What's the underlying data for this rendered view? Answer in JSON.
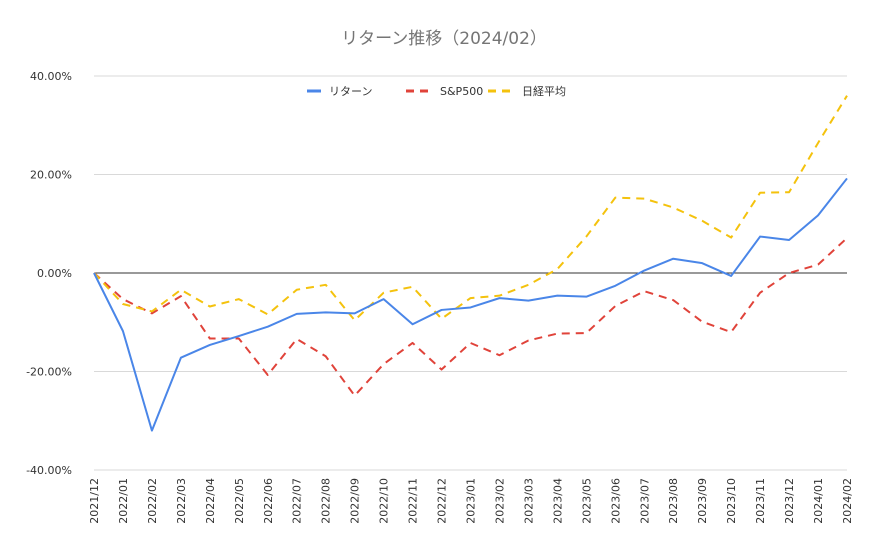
{
  "chart_data": {
    "type": "line",
    "title": "リターン推移（2024/02）",
    "xlabel": "",
    "ylabel": "",
    "ylim": [
      -40,
      40
    ],
    "yticks": [
      40,
      20,
      0,
      -20,
      -40
    ],
    "ytick_labels": [
      "40.00%",
      "20.00%",
      "0.00%",
      "-20.00%",
      "-40.00%"
    ],
    "grid": true,
    "legend_position": "top-center",
    "categories": [
      "2021/12",
      "2022/01",
      "2022/02",
      "2022/03",
      "2022/04",
      "2022/05",
      "2022/06",
      "2022/07",
      "2022/08",
      "2022/09",
      "2022/10",
      "2022/11",
      "2022/12",
      "2023/01",
      "2023/02",
      "2023/03",
      "2023/04",
      "2023/05",
      "2023/06",
      "2023/07",
      "2023/08",
      "2023/09",
      "2023/10",
      "2023/11",
      "2023/12",
      "2024/01",
      "2024/02"
    ],
    "series": [
      {
        "name": "リターン",
        "color": "#4a86e8",
        "dash": "solid",
        "values": [
          0,
          -11.8,
          -32.0,
          -17.2,
          -14.6,
          -12.8,
          -10.9,
          -8.3,
          -8.0,
          -8.2,
          -5.3,
          -10.4,
          -7.5,
          -7.0,
          -5.1,
          -5.6,
          -4.6,
          -4.8,
          -2.6,
          0.5,
          2.9,
          2.0,
          -0.6,
          7.4,
          6.7,
          11.7,
          19.2
        ]
      },
      {
        "name": "S&P500",
        "color": "#e0433a",
        "dash": "dashed",
        "values": [
          0,
          -5.3,
          -8.2,
          -4.7,
          -13.3,
          -13.3,
          -20.7,
          -13.4,
          -16.9,
          -24.9,
          -18.5,
          -14.2,
          -19.6,
          -14.2,
          -16.7,
          -13.7,
          -12.3,
          -12.2,
          -6.7,
          -3.7,
          -5.5,
          -9.9,
          -12.0,
          -4.0,
          0.0,
          1.7,
          7.1
        ]
      },
      {
        "name": "日経平均",
        "color": "#f4c20d",
        "dash": "dashed",
        "values": [
          0,
          -6.3,
          -7.8,
          -3.4,
          -6.8,
          -5.3,
          -8.4,
          -3.4,
          -2.4,
          -9.6,
          -4.0,
          -2.8,
          -9.3,
          -5.1,
          -4.6,
          -2.4,
          0.8,
          7.4,
          15.3,
          15.1,
          13.3,
          10.6,
          7.2,
          16.3,
          16.4,
          26.4,
          36.0
        ]
      }
    ]
  }
}
